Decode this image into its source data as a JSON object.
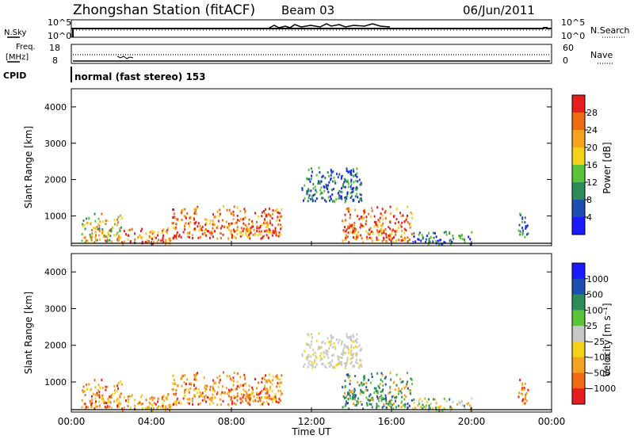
{
  "header": {
    "title": "Zhongshan Station (fitACF)",
    "beam": "Beam 03",
    "date": "06/Jun/2011"
  },
  "noise_panel": {
    "left_label": "N.Sky",
    "right_label": "N.Search",
    "ytick_top": "10^5",
    "ytick_bottom": "10^0",
    "ytick_top_right": "10^5",
    "ytick_bottom_right": "10^0"
  },
  "freq_panel": {
    "left_label_line1": "Freq.",
    "left_label_line2": "[MHz]",
    "right_label": "Nave",
    "left_ticks": [
      "18",
      "8"
    ],
    "right_ticks": [
      "60",
      "0"
    ]
  },
  "cpid": {
    "label": "CPID",
    "mode": "normal (fast stereo) 153"
  },
  "x_axis": {
    "label": "Time UT",
    "ticks": [
      "00:00",
      "04:00",
      "08:00",
      "12:00",
      "16:00",
      "20:00",
      "00:00"
    ]
  },
  "colors": {
    "power_scale": [
      "#1a1aff",
      "#1e4fb0",
      "#2f8a5a",
      "#5cc23a",
      "#f5d21a",
      "#f5a31e",
      "#f06a14",
      "#e61e1e"
    ],
    "velocity_scale": [
      "#e61e1e",
      "#f06a14",
      "#f5a31e",
      "#f5d21a",
      "#c8c8c8",
      "#5cc23a",
      "#2f8a5a",
      "#1e4fb0",
      "#1a1aff"
    ]
  },
  "chart_data": [
    {
      "type": "heatmap",
      "ylabel": "Slant Range [km]",
      "xlabel": "Time UT",
      "xlim": [
        "00:00",
        "24:00"
      ],
      "ylim": [
        180,
        4500
      ],
      "yticks": [
        "1000",
        "2000",
        "3000",
        "4000"
      ],
      "colorbar_label": "Power [dB]",
      "colorbar_ticks": [
        "28",
        "24",
        "20",
        "16",
        "12",
        "8",
        "4"
      ],
      "colorbar_range": [
        0,
        32
      ],
      "scatter_regions": [
        {
          "t_start": 0.5,
          "t_end": 2.5,
          "range_low": 300,
          "range_high": 1100,
          "level": "medium"
        },
        {
          "t_start": 2.5,
          "t_end": 5.0,
          "range_low": 250,
          "range_high": 700,
          "level": "high"
        },
        {
          "t_start": 5.0,
          "t_end": 10.5,
          "range_low": 400,
          "range_high": 1300,
          "level": "high"
        },
        {
          "t_start": 11.5,
          "t_end": 14.5,
          "range_low": 1400,
          "range_high": 2400,
          "level": "low"
        },
        {
          "t_start": 13.5,
          "t_end": 17.0,
          "range_low": 300,
          "range_high": 1300,
          "level": "high"
        },
        {
          "t_start": 17.0,
          "t_end": 20.0,
          "range_low": 250,
          "range_high": 600,
          "level": "low"
        },
        {
          "t_start": 22.3,
          "t_end": 22.8,
          "range_low": 400,
          "range_high": 1100,
          "level": "low"
        }
      ]
    },
    {
      "type": "heatmap",
      "ylabel": "Slant Range [km]",
      "xlabel": "Time UT",
      "xlim": [
        "00:00",
        "24:00"
      ],
      "ylim": [
        180,
        4500
      ],
      "yticks": [
        "1000",
        "2000",
        "3000",
        "4000"
      ],
      "colorbar_label": "Velocity [m s⁻¹]",
      "colorbar_ticks": [
        "1000",
        "500",
        "100",
        "25",
        "−25",
        "−100",
        "−500",
        "−1000"
      ],
      "colorbar_range": [
        -1000,
        1000
      ],
      "scatter_regions": [
        {
          "t_start": 0.5,
          "t_end": 2.5,
          "range_low": 300,
          "range_high": 1100,
          "level": "negative"
        },
        {
          "t_start": 2.5,
          "t_end": 5.0,
          "range_low": 250,
          "range_high": 700,
          "level": "negative"
        },
        {
          "t_start": 5.0,
          "t_end": 10.5,
          "range_low": 400,
          "range_high": 1300,
          "level": "negative"
        },
        {
          "t_start": 11.5,
          "t_end": 14.5,
          "range_low": 1400,
          "range_high": 2400,
          "level": "near-zero"
        },
        {
          "t_start": 13.5,
          "t_end": 17.0,
          "range_low": 300,
          "range_high": 1300,
          "level": "positive"
        },
        {
          "t_start": 17.0,
          "t_end": 20.0,
          "range_low": 250,
          "range_high": 600,
          "level": "mixed"
        },
        {
          "t_start": 22.3,
          "t_end": 22.8,
          "range_low": 400,
          "range_high": 1100,
          "level": "negative"
        }
      ]
    }
  ]
}
